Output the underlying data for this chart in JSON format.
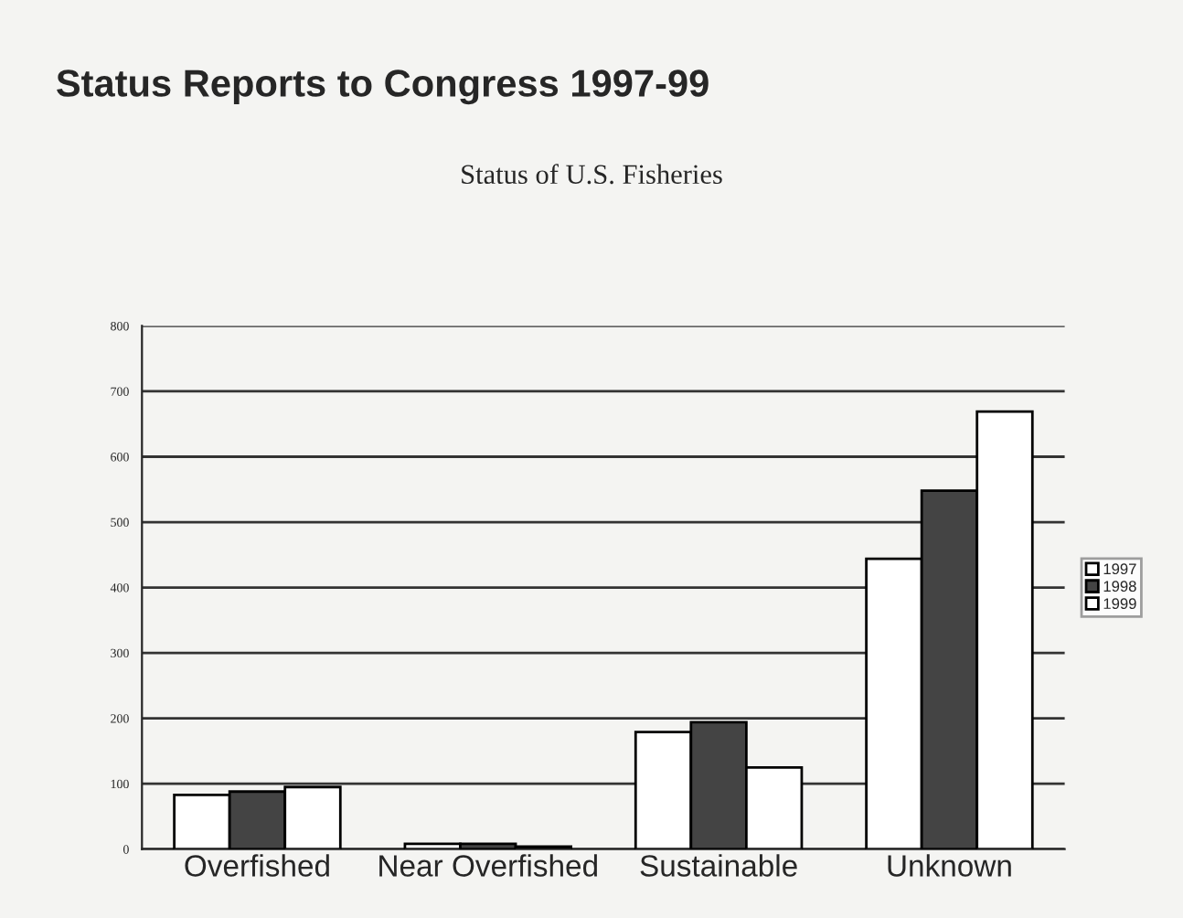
{
  "chart_data": {
    "type": "bar",
    "title": "Status Reports to Congress 1997-99",
    "subtitle": "Status of U.S. Fisheries",
    "categories": [
      "Overfished",
      "Near Overfished",
      "Sustainable",
      "Unknown"
    ],
    "series": [
      {
        "name": "1997",
        "color": "#ffffff",
        "values": [
          83,
          8,
          179,
          444
        ]
      },
      {
        "name": "1998",
        "color": "#444444",
        "values": [
          88,
          8,
          194,
          548
        ]
      },
      {
        "name": "1999",
        "color": "#ffffff",
        "values": [
          95,
          4,
          125,
          669
        ]
      }
    ],
    "ylim": [
      0,
      800
    ],
    "yticks": [
      0,
      100,
      200,
      300,
      400,
      500,
      600,
      700,
      800
    ],
    "grid": "y",
    "legend": "right"
  }
}
